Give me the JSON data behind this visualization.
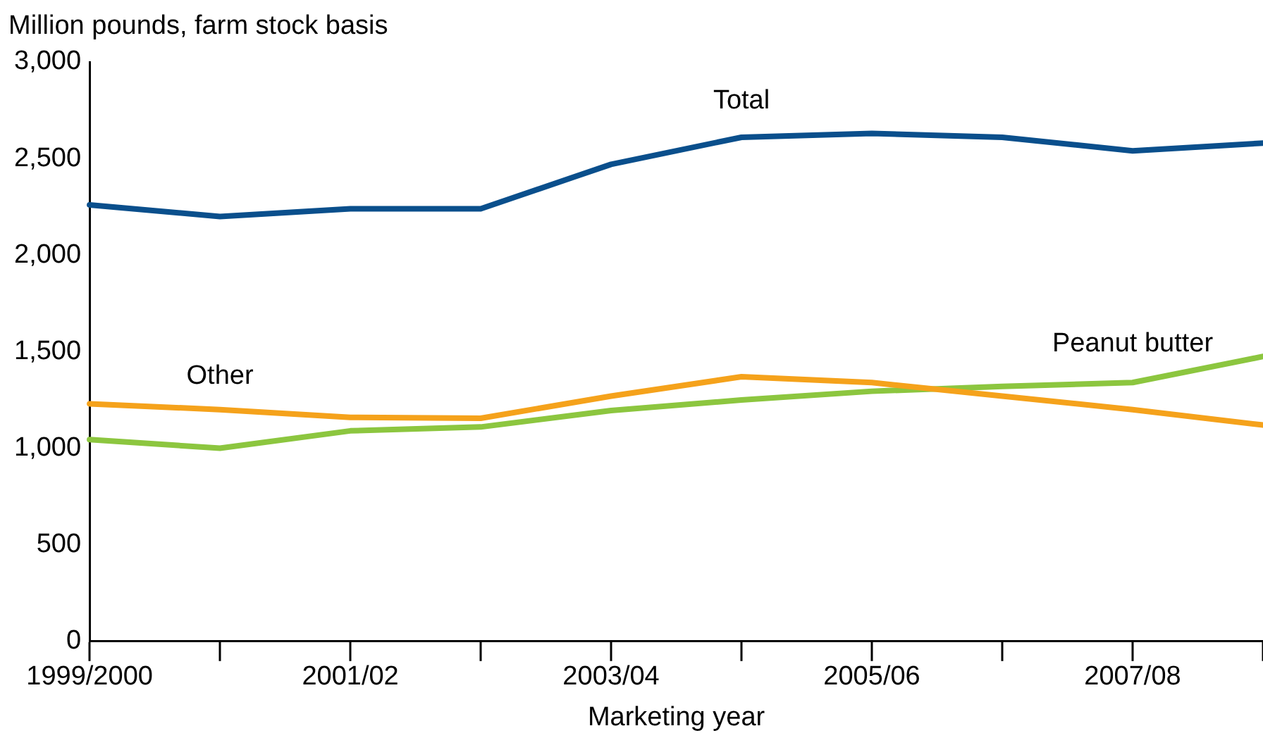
{
  "chart_data": {
    "type": "line",
    "ylabel": "Million pounds, farm stock basis",
    "xlabel": "Marketing year",
    "categories": [
      "1999/2000",
      null,
      "2001/02",
      null,
      "2003/04",
      null,
      "2005/06",
      null,
      "2007/08",
      null
    ],
    "series": [
      {
        "name": "Total",
        "color": "#0a4f8c",
        "values": [
          2260,
          2200,
          2240,
          2240,
          2470,
          2610,
          2630,
          2610,
          2540,
          2580
        ]
      },
      {
        "name": "Other",
        "color": "#f5a21b",
        "values": [
          1230,
          1200,
          1160,
          1155,
          1270,
          1370,
          1340,
          1270,
          1200,
          1120
        ]
      },
      {
        "name": "Peanut butter",
        "color": "#8cc63f",
        "values": [
          1045,
          1000,
          1090,
          1110,
          1195,
          1250,
          1295,
          1320,
          1340,
          1475
        ]
      }
    ],
    "ylim": [
      0,
      3000
    ],
    "yticks": [
      0,
      {
        "value": 500,
        "label": "500"
      },
      {
        "value": 1000,
        "label": "1,000"
      },
      {
        "value": 1500,
        "label": "1,500"
      },
      {
        "value": 2000,
        "label": "2,000"
      },
      {
        "value": 2500,
        "label": "2,500"
      },
      {
        "value": 3000,
        "label": "3,000"
      }
    ],
    "grid": false,
    "legend": false,
    "marker": "none",
    "line_style": "solid"
  }
}
